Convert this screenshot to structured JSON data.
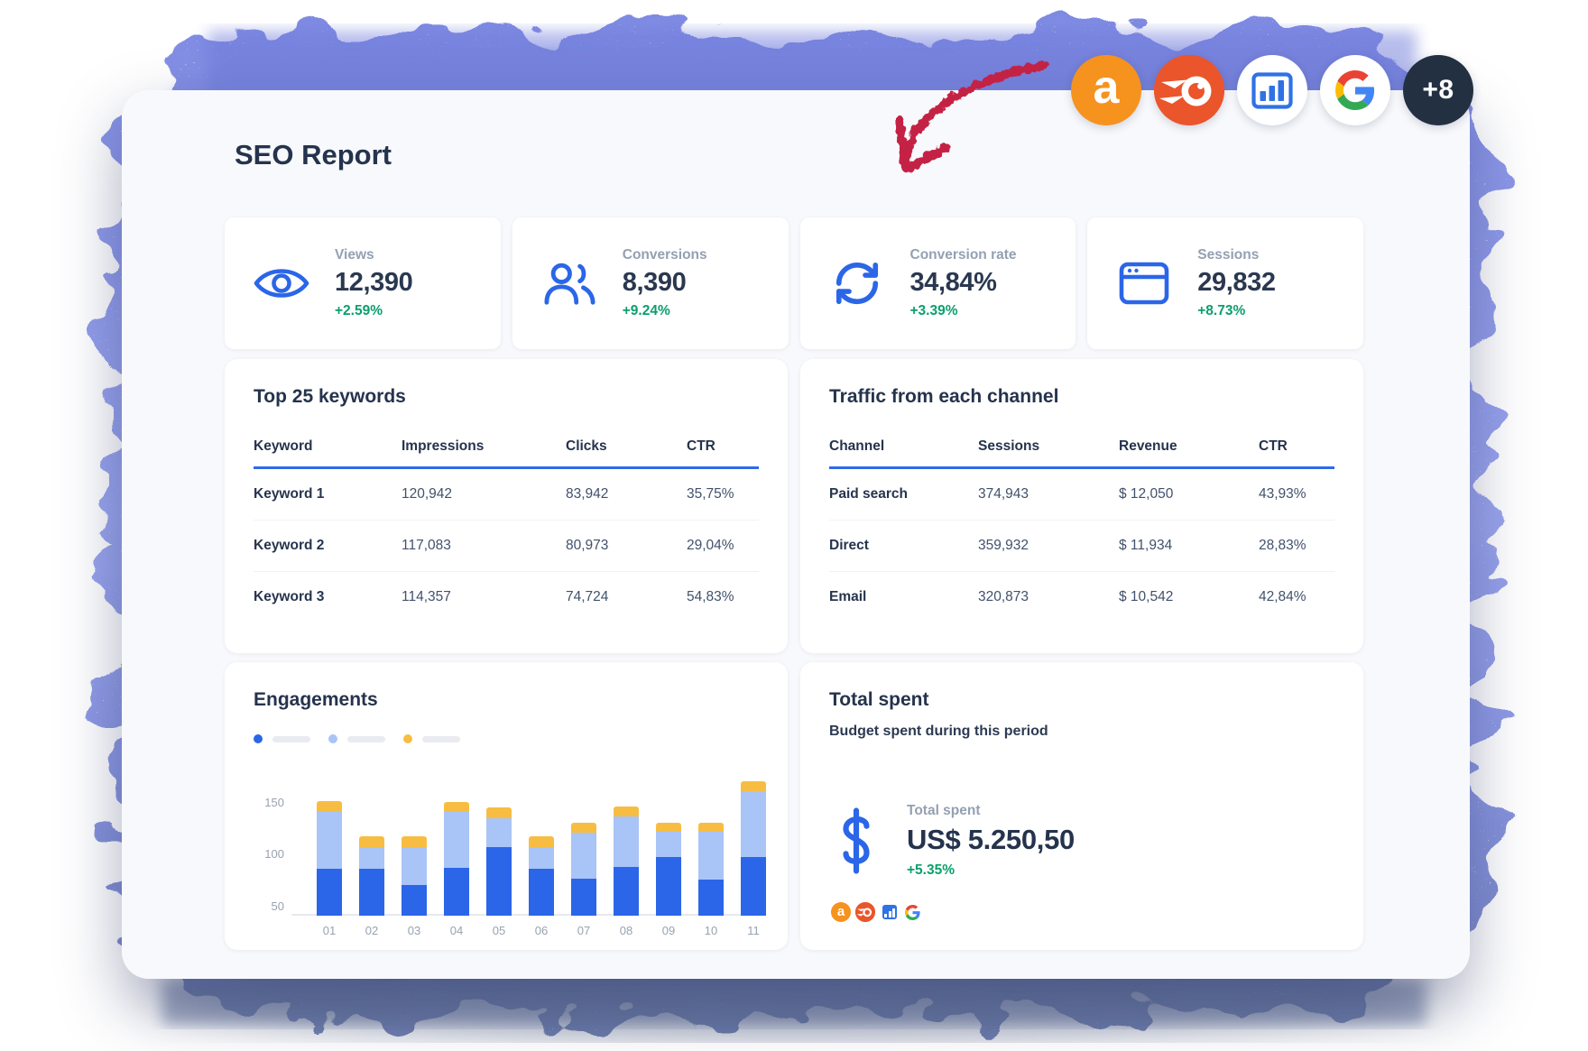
{
  "header": {
    "title": "SEO Report"
  },
  "app_icons": [
    {
      "name": "ahrefs",
      "label": "a",
      "bg": "#f6921e"
    },
    {
      "name": "semrush",
      "bg": "#eb552b"
    },
    {
      "name": "analytics",
      "bg": "#ffffff"
    },
    {
      "name": "google",
      "bg": "#ffffff"
    },
    {
      "name": "more-apps",
      "label": "+8",
      "bg": "#233041"
    }
  ],
  "kpi_cards": [
    {
      "icon": "eye-icon",
      "label": "Views",
      "value": "12,390",
      "delta": "+2.59%"
    },
    {
      "icon": "users-icon",
      "label": "Conversions",
      "value": "8,390",
      "delta": "+9.24%"
    },
    {
      "icon": "refresh-icon",
      "label": "Conversion rate",
      "value": "34,84%",
      "delta": "+3.39%"
    },
    {
      "icon": "browser-icon",
      "label": "Sessions",
      "value": "29,832",
      "delta": "+8.73%"
    }
  ],
  "keywords_table": {
    "title": "Top 25 keywords",
    "columns": [
      "Keyword",
      "Impressions",
      "Clicks",
      "CTR"
    ],
    "rows": [
      [
        "Keyword 1",
        "120,942",
        "83,942",
        "35,75%"
      ],
      [
        "Keyword 2",
        "117,083",
        "80,973",
        "29,04%"
      ],
      [
        "Keyword 3",
        "114,357",
        "74,724",
        "54,83%"
      ]
    ]
  },
  "traffic_table": {
    "title": "Traffic from each channel",
    "columns": [
      "Channel",
      "Sessions",
      "Revenue",
      "CTR"
    ],
    "rows": [
      [
        "Paid search",
        "374,943",
        "$ 12,050",
        "43,93%"
      ],
      [
        "Direct",
        "359,932",
        "$ 11,934",
        "28,83%"
      ],
      [
        "Email",
        "320,873",
        "$ 10,542",
        "42,84%"
      ]
    ]
  },
  "chart_data": {
    "type": "bar",
    "stacked": true,
    "title": "Engagements",
    "categories": [
      "01",
      "02",
      "03",
      "04",
      "05",
      "06",
      "07",
      "08",
      "09",
      "10",
      "11"
    ],
    "series": [
      {
        "name": "series-1",
        "color": "#2b66e8",
        "values": [
          45,
          45,
          30,
          46,
          66,
          45,
          36,
          47,
          57,
          35,
          57
        ]
      },
      {
        "name": "series-2",
        "color": "#a9c4f7",
        "values": [
          55,
          21,
          36,
          54,
          28,
          21,
          44,
          49,
          24,
          46,
          63
        ]
      },
      {
        "name": "series-3",
        "color": "#f7bd42",
        "values": [
          11,
          11,
          11,
          10,
          10,
          11,
          10,
          9,
          9,
          9,
          10
        ]
      }
    ],
    "baseline": 40,
    "totals": [
      151,
      117,
      117,
      150,
      144,
      117,
      130,
      145,
      130,
      130,
      170
    ],
    "yticks": [
      50,
      100,
      150
    ],
    "ylim": [
      40,
      175
    ],
    "grid": false,
    "legend_position": "top",
    "note": "segment values stack on top of axis baseline 40"
  },
  "total_spent": {
    "title": "Total spent",
    "subtitle": "Budget spent during this period",
    "label": "Total spent",
    "value": "US$ 5.250,50",
    "delta": "+5.35%"
  },
  "colors": {
    "accent_blue": "#2b66e8",
    "light_blue": "#a9c4f7",
    "yellow": "#f7bd42",
    "green": "#0aa06b",
    "table_rule_blue": "#2f6be9",
    "arrow_red": "#c42044",
    "blob_purple": "#8e99e9",
    "dark_circle": "#233041",
    "ahrefs_orange": "#f6921e",
    "semrush_orange": "#eb552b"
  }
}
